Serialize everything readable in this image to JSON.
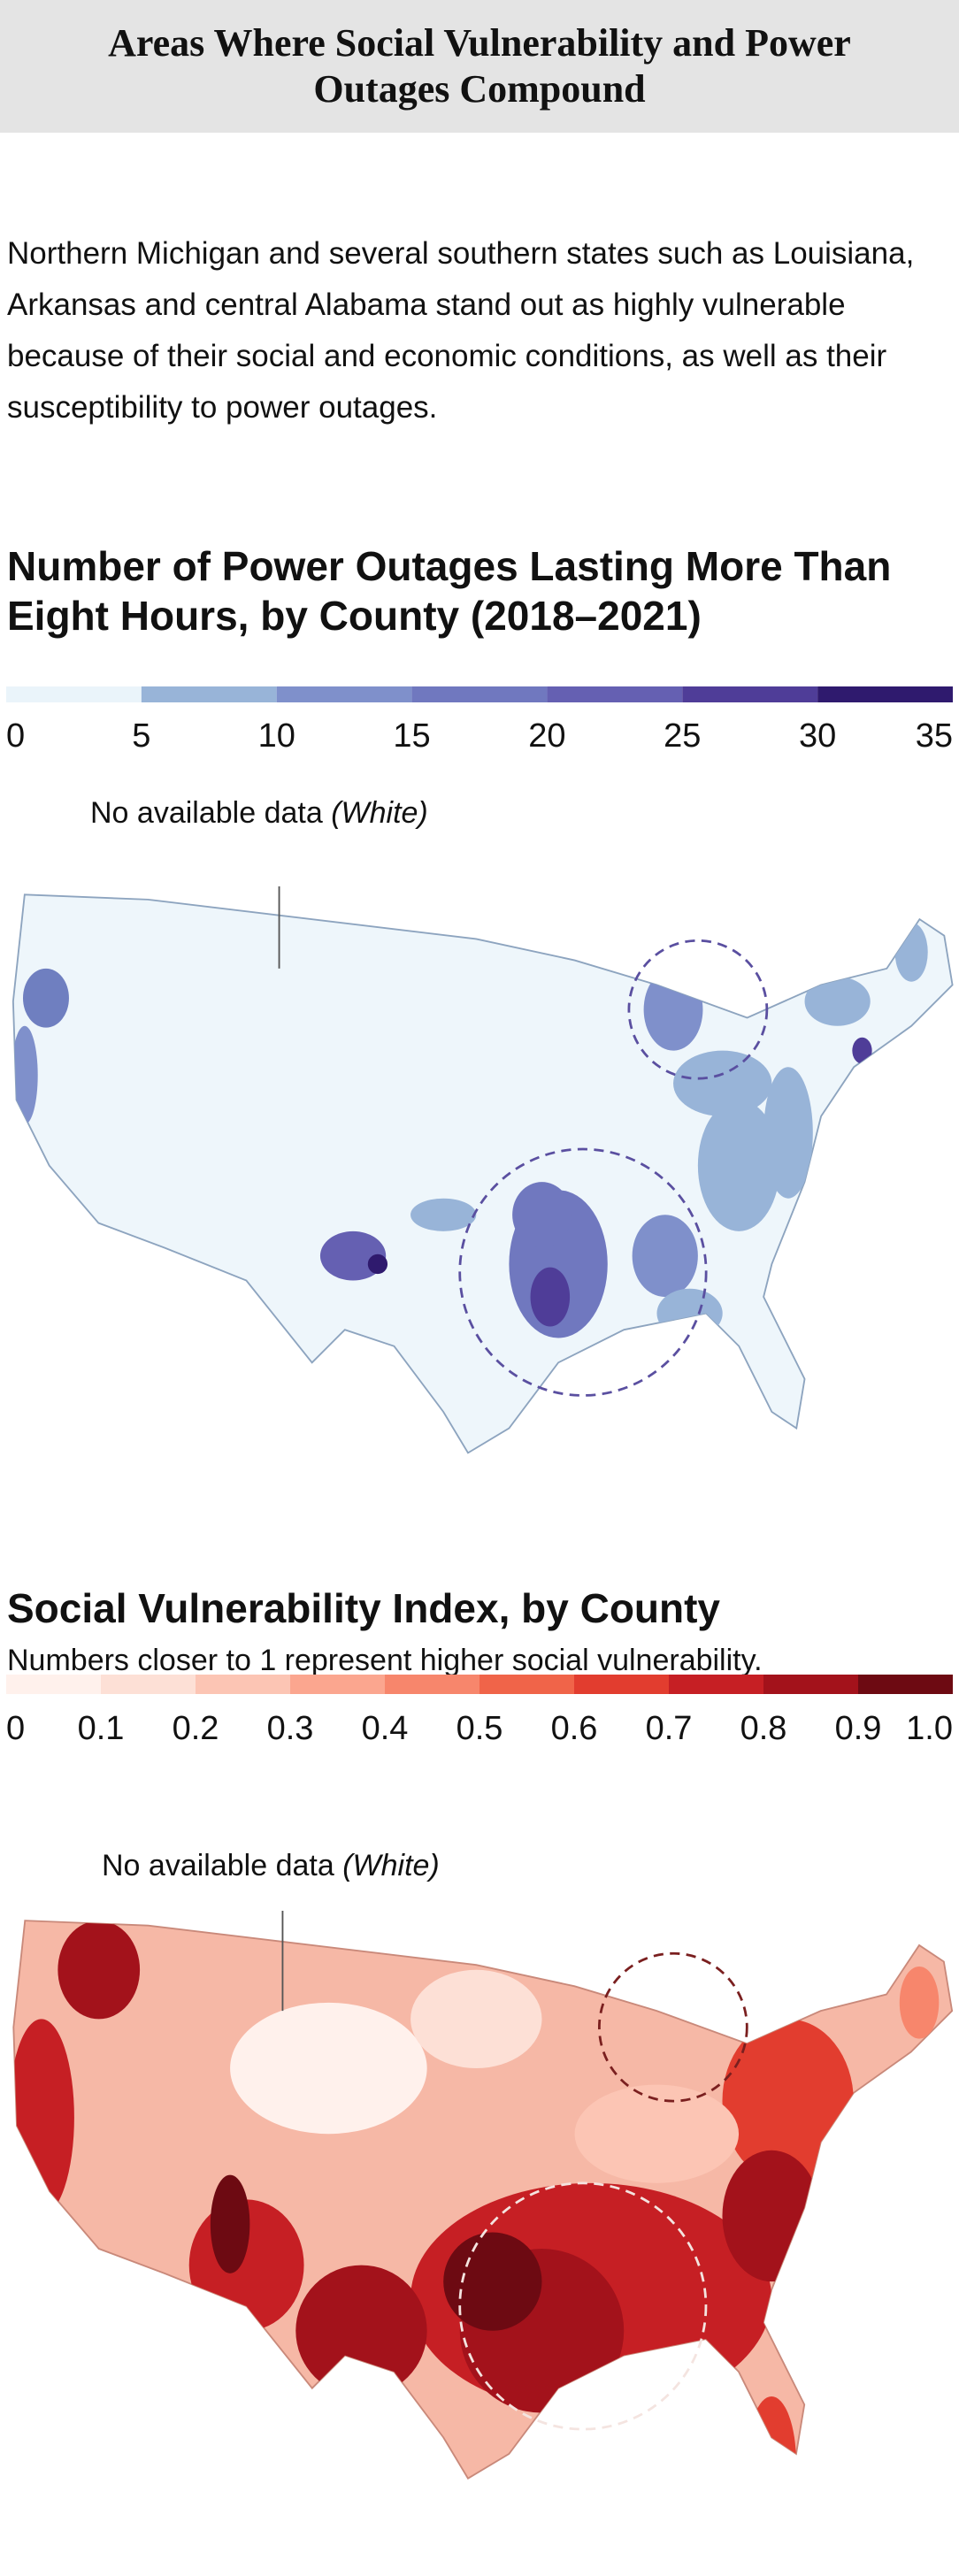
{
  "header": {
    "title": "Areas Where Social Vulnerability and Power Outages Compound"
  },
  "intro": "Northern Michigan and several southern states such as Louisiana, Arkansas and central Alabama stand out as highly vulnerable because of their social and economic conditions, as well as their susceptibility to power outages.",
  "maps": [
    {
      "title": "Number of Power Outages Lasting More Than Eight Hours, by County (2018–2021)",
      "legend": {
        "xlim": [
          0,
          35
        ],
        "xticks": [
          0,
          5,
          10,
          15,
          20,
          25,
          30,
          35
        ],
        "colors": [
          "#eaf4fa",
          "#98b4d8",
          "#7f90cb",
          "#7078bf",
          "#6560b2",
          "#4f3d98",
          "#2f1a6e"
        ]
      },
      "annotation": {
        "text": "No available data",
        "note": "(White)"
      }
    },
    {
      "title": "Social Vulnerability Index, by County",
      "subtitle": "Numbers closer to 1 represent higher social vulnerability.",
      "legend": {
        "xlim": [
          0,
          1
        ],
        "xticks": [
          0,
          0.1,
          0.2,
          0.3,
          0.4,
          0.5,
          0.6,
          0.7,
          0.8,
          0.9,
          {
            "value": 1,
            "label": "1.0"
          }
        ],
        "colors": [
          "#fff1ec",
          "#fde0d6",
          "#fcc5b4",
          "#fba68f",
          "#f7866c",
          "#f06449",
          "#e23d2f",
          "#c61f24",
          "#a3121b",
          "#6d0a12"
        ]
      },
      "annotation": {
        "text": "No available data",
        "note": "(White)"
      }
    }
  ]
}
